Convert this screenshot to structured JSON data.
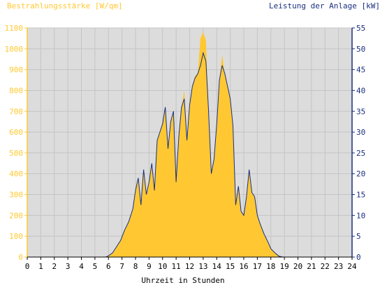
{
  "chart_data": {
    "type": "area",
    "title_left": "Bestrahlungsstärke [W/qm]",
    "title_right": "Leistung der Anlage [kW]",
    "xlabel": "Uhrzeit in Stunden",
    "xlim": [
      0,
      24
    ],
    "xticks": [
      "0",
      "1",
      "2",
      "3",
      "4",
      "5",
      "6",
      "7",
      "8",
      "9",
      "10",
      "11",
      "12",
      "13",
      "14",
      "15",
      "16",
      "17",
      "18",
      "19",
      "20",
      "21",
      "22",
      "23",
      "24"
    ],
    "ylim_left": [
      0,
      1100
    ],
    "yticks_left": [
      "0",
      "100",
      "200",
      "300",
      "400",
      "500",
      "600",
      "700",
      "800",
      "900",
      "1000",
      "1100"
    ],
    "ylim_right": [
      0,
      55
    ],
    "yticks_right": [
      "0",
      "5",
      "10",
      "15",
      "20",
      "25",
      "30",
      "35",
      "40",
      "45",
      "50",
      "55"
    ],
    "grid": true,
    "colors": {
      "irradiance": "#FFC832",
      "power": "#1A2F80",
      "left_axis": "#FFC832",
      "right_axis": "#1A2F80",
      "plot_bg": "#DCDCDC",
      "grid": "#C4C4C4"
    },
    "series": [
      {
        "name": "Bestrahlungsstärke [W/qm]",
        "unit": "W/qm",
        "axis": "left",
        "x": [
          0,
          5.8,
          6.0,
          6.3,
          6.6,
          6.9,
          7.2,
          7.5,
          7.8,
          8.0,
          8.2,
          8.4,
          8.6,
          8.8,
          9.0,
          9.2,
          9.4,
          9.6,
          9.8,
          10.0,
          10.2,
          10.4,
          10.6,
          10.8,
          11.0,
          11.2,
          11.4,
          11.6,
          11.8,
          12.0,
          12.2,
          12.4,
          12.6,
          12.8,
          13.0,
          13.2,
          13.4,
          13.6,
          13.8,
          14.0,
          14.2,
          14.4,
          14.6,
          14.8,
          15.0,
          15.2,
          15.4,
          15.6,
          15.8,
          16.0,
          16.2,
          16.4,
          16.6,
          16.8,
          17.0,
          17.2,
          17.5,
          17.8,
          18.0,
          18.3,
          18.6,
          18.9,
          19.1,
          24
        ],
        "values": [
          0,
          0,
          5,
          20,
          50,
          80,
          130,
          170,
          230,
          320,
          380,
          250,
          420,
          300,
          360,
          450,
          320,
          560,
          600,
          640,
          720,
          520,
          650,
          700,
          360,
          580,
          720,
          800,
          560,
          730,
          820,
          870,
          880,
          1050,
          1080,
          1040,
          700,
          400,
          470,
          640,
          850,
          970,
          880,
          820,
          760,
          630,
          250,
          340,
          220,
          200,
          290,
          420,
          310,
          290,
          200,
          160,
          110,
          70,
          40,
          20,
          5,
          0,
          0,
          0
        ]
      },
      {
        "name": "Leistung der Anlage [kW]",
        "unit": "kW",
        "axis": "right",
        "x": [
          0,
          5.8,
          6.0,
          6.3,
          6.6,
          6.9,
          7.2,
          7.5,
          7.8,
          8.0,
          8.2,
          8.4,
          8.6,
          8.8,
          9.0,
          9.2,
          9.4,
          9.6,
          9.8,
          10.0,
          10.2,
          10.4,
          10.6,
          10.8,
          11.0,
          11.2,
          11.4,
          11.6,
          11.8,
          12.0,
          12.2,
          12.4,
          12.6,
          12.8,
          13.0,
          13.2,
          13.4,
          13.6,
          13.8,
          14.0,
          14.2,
          14.4,
          14.6,
          14.8,
          15.0,
          15.2,
          15.4,
          15.6,
          15.8,
          16.0,
          16.2,
          16.4,
          16.6,
          16.8,
          17.0,
          17.2,
          17.5,
          17.8,
          18.0,
          18.3,
          18.6,
          18.9,
          19.1,
          24
        ],
        "values": [
          0,
          0,
          0.3,
          1,
          2.5,
          4,
          6.5,
          8.5,
          11.5,
          16,
          19,
          12.5,
          21,
          15,
          18,
          22.5,
          16,
          28,
          30,
          32,
          36,
          26,
          32.5,
          35,
          18,
          29,
          36,
          38,
          28,
          36.5,
          41,
          43,
          44,
          46,
          49,
          47,
          35,
          20,
          23.5,
          32,
          42.5,
          46,
          44,
          41,
          38,
          31.5,
          12.5,
          17,
          11,
          10,
          14.5,
          21,
          15.5,
          14.5,
          10,
          8,
          5.5,
          3.5,
          2,
          1,
          0.2,
          0,
          0,
          0
        ]
      }
    ]
  }
}
